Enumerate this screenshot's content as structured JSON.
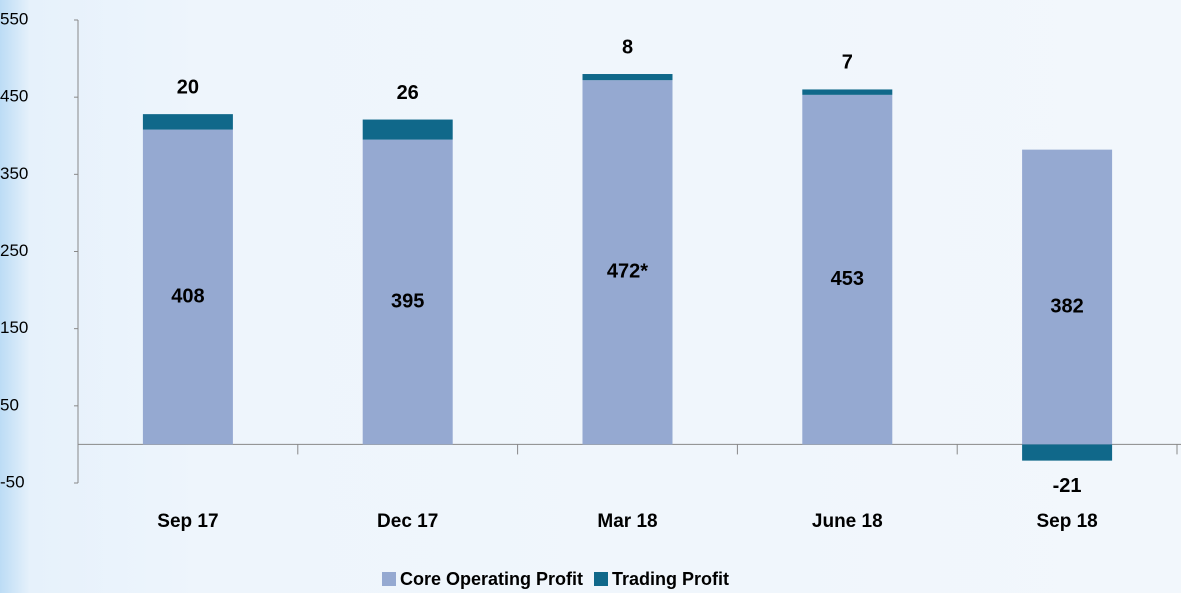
{
  "chart_data": {
    "type": "stacked_bar",
    "categories": [
      "Sep 17",
      "Dec 17",
      "Mar 18",
      "June 18",
      "Sep 18"
    ],
    "series": [
      {
        "name": "Core Operating Profit",
        "color": "#95a9d1",
        "values": [
          408,
          395,
          472,
          453,
          382
        ],
        "value_labels": [
          "408",
          "395",
          "472*",
          "453",
          "382"
        ]
      },
      {
        "name": "Trading Profit",
        "color": "#10688a",
        "values": [
          20,
          26,
          8,
          7,
          -21
        ]
      }
    ],
    "ylim": [
      -50,
      550
    ],
    "yticks": [
      -50,
      50,
      150,
      250,
      350,
      450,
      550
    ],
    "grid": false,
    "legend": "bottom"
  }
}
